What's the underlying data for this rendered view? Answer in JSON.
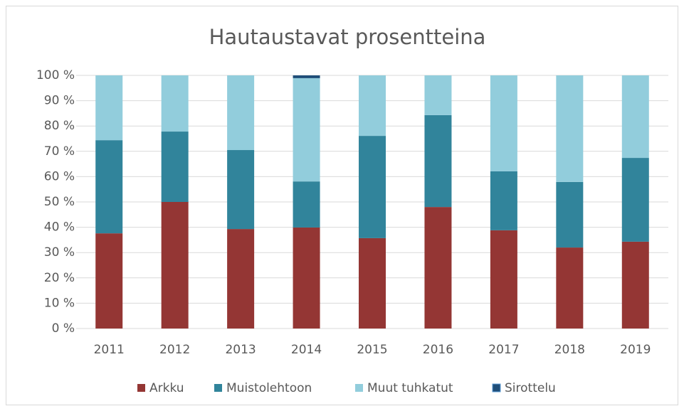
{
  "chart_data": {
    "type": "stacked_bar",
    "title": "Hautaustavat prosentteina",
    "categories": [
      "2011",
      "2012",
      "2013",
      "2014",
      "2015",
      "2016",
      "2017",
      "2018",
      "2019"
    ],
    "series": [
      {
        "name": "Arkku",
        "color": "#943634",
        "values": [
          37.6,
          50,
          39.3,
          39.9,
          35.7,
          48,
          38.8,
          32,
          34.3
        ]
      },
      {
        "name": "Muistolehtoon",
        "color": "#31849b",
        "values": [
          36.8,
          27.8,
          31.2,
          18.2,
          40.4,
          36.3,
          23.3,
          25.9,
          33.1
        ]
      },
      {
        "name": "Muut tuhkatut",
        "color": "#92cddc",
        "values": [
          25.6,
          22.2,
          29.5,
          40.8,
          23.9,
          15.7,
          37.9,
          42.1,
          32.6
        ]
      },
      {
        "name": "Sirottelu",
        "color": "#1f4e79",
        "values": [
          0,
          0,
          0,
          1.1,
          0,
          0,
          0,
          0,
          0
        ]
      }
    ],
    "ylim": [
      0,
      100
    ],
    "yticks": [
      {
        "value": 0,
        "label": "0 %"
      },
      {
        "value": 10,
        "label": "10 %"
      },
      {
        "value": 20,
        "label": "20 %"
      },
      {
        "value": 30,
        "label": "30 %"
      },
      {
        "value": 40,
        "label": "40 %"
      },
      {
        "value": 50,
        "label": "50 %"
      },
      {
        "value": 60,
        "label": "60 %"
      },
      {
        "value": 70,
        "label": "70 %"
      },
      {
        "value": 80,
        "label": "80 %"
      },
      {
        "value": 90,
        "label": "90 %"
      },
      {
        "value": 100,
        "label": "100 %"
      }
    ],
    "grid": true,
    "legend": "bottom"
  }
}
